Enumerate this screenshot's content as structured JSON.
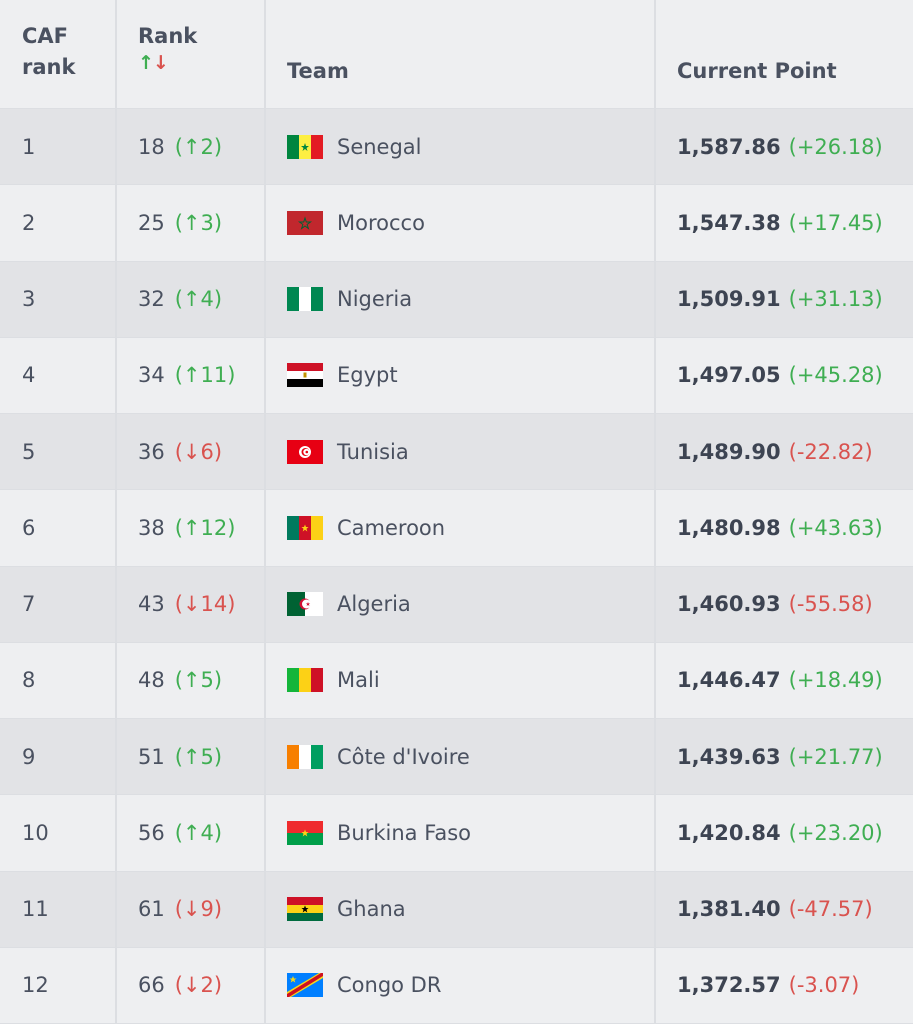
{
  "header": {
    "caf_rank_line1": "CAF",
    "caf_rank_line2": "rank",
    "rank_label": "Rank",
    "rank_up_arrow": "↑",
    "rank_down_arrow": "↓",
    "team_label": "Team",
    "points_label": "Current Point"
  },
  "colors": {
    "up": "#3fae52",
    "down": "#d9534f"
  },
  "rows": [
    {
      "caf": "1",
      "rank": "18",
      "change": "(↑2)",
      "dir": "up",
      "team": "Senegal",
      "flag": "senegal-flag-icon",
      "points": "1,587.86",
      "pt_change": "(+26.18)",
      "pt_dir": "up"
    },
    {
      "caf": "2",
      "rank": "25",
      "change": "(↑3)",
      "dir": "up",
      "team": "Morocco",
      "flag": "morocco-flag-icon",
      "points": "1,547.38",
      "pt_change": "(+17.45)",
      "pt_dir": "up"
    },
    {
      "caf": "3",
      "rank": "32",
      "change": "(↑4)",
      "dir": "up",
      "team": "Nigeria",
      "flag": "nigeria-flag-icon",
      "points": "1,509.91",
      "pt_change": "(+31.13)",
      "pt_dir": "up"
    },
    {
      "caf": "4",
      "rank": "34",
      "change": "(↑11)",
      "dir": "up",
      "team": "Egypt",
      "flag": "egypt-flag-icon",
      "points": "1,497.05",
      "pt_change": "(+45.28)",
      "pt_dir": "up"
    },
    {
      "caf": "5",
      "rank": "36",
      "change": "(↓6)",
      "dir": "down",
      "team": "Tunisia",
      "flag": "tunisia-flag-icon",
      "points": "1,489.90",
      "pt_change": "(-22.82)",
      "pt_dir": "down"
    },
    {
      "caf": "6",
      "rank": "38",
      "change": "(↑12)",
      "dir": "up",
      "team": "Cameroon",
      "flag": "cameroon-flag-icon",
      "points": "1,480.98",
      "pt_change": "(+43.63)",
      "pt_dir": "up"
    },
    {
      "caf": "7",
      "rank": "43",
      "change": "(↓14)",
      "dir": "down",
      "team": "Algeria",
      "flag": "algeria-flag-icon",
      "points": "1,460.93",
      "pt_change": "(-55.58)",
      "pt_dir": "down"
    },
    {
      "caf": "8",
      "rank": "48",
      "change": "(↑5)",
      "dir": "up",
      "team": "Mali",
      "flag": "mali-flag-icon",
      "points": "1,446.47",
      "pt_change": "(+18.49)",
      "pt_dir": "up"
    },
    {
      "caf": "9",
      "rank": "51",
      "change": "(↑5)",
      "dir": "up",
      "team": "Côte d'Ivoire",
      "flag": "cote-divoire-flag-icon",
      "points": "1,439.63",
      "pt_change": "(+21.77)",
      "pt_dir": "up"
    },
    {
      "caf": "10",
      "rank": "56",
      "change": "(↑4)",
      "dir": "up",
      "team": "Burkina Faso",
      "flag": "burkina-faso-flag-icon",
      "points": "1,420.84",
      "pt_change": "(+23.20)",
      "pt_dir": "up"
    },
    {
      "caf": "11",
      "rank": "61",
      "change": "(↓9)",
      "dir": "down",
      "team": "Ghana",
      "flag": "ghana-flag-icon",
      "points": "1,381.40",
      "pt_change": "(-47.57)",
      "pt_dir": "down"
    },
    {
      "caf": "12",
      "rank": "66",
      "change": "(↓2)",
      "dir": "down",
      "team": "Congo DR",
      "flag": "congo-dr-flag-icon",
      "points": "1,372.57",
      "pt_change": "(-3.07)",
      "pt_dir": "down"
    }
  ]
}
